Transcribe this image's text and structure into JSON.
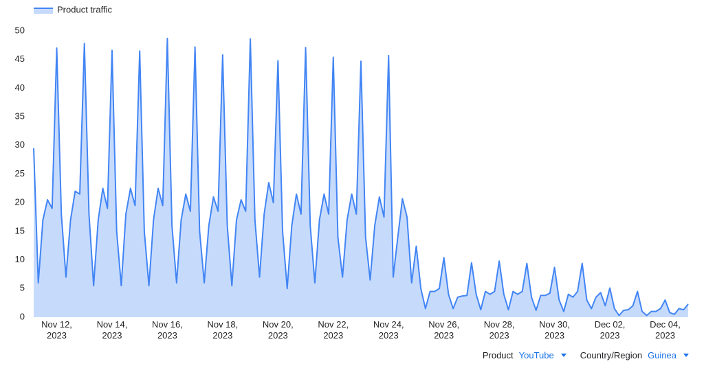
{
  "chart_data": {
    "type": "area",
    "legend_label": "Product traffic",
    "color": "#4285f4",
    "fill": "#c6dafc",
    "categories": [
      null,
      null,
      null,
      null,
      null,
      "Nov 12, 2023",
      null,
      null,
      null,
      null,
      null,
      null,
      null,
      null,
      null,
      null,
      null,
      "Nov 14, 2023",
      null,
      null,
      null,
      null,
      null,
      null,
      null,
      null,
      null,
      null,
      null,
      "Nov 16, 2023",
      null,
      null,
      null,
      null,
      null,
      null,
      null,
      null,
      null,
      null,
      null,
      "Nov 18, 2023",
      null,
      null,
      null,
      null,
      null,
      null,
      null,
      null,
      null,
      null,
      null,
      "Nov 20, 2023",
      null,
      null,
      null,
      null,
      null,
      null,
      null,
      null,
      null,
      null,
      null,
      "Nov 22, 2023",
      null,
      null,
      null,
      null,
      null,
      null,
      null,
      null,
      null,
      null,
      null,
      "Nov 24, 2023",
      null,
      null,
      null,
      null,
      null,
      null,
      null,
      null,
      null,
      null,
      null,
      "Nov 26, 2023",
      null,
      null,
      null,
      null,
      null,
      null,
      null,
      null,
      null,
      null,
      null,
      "Nov 28, 2023",
      null,
      null,
      null,
      null,
      null,
      null,
      null,
      null,
      null,
      null,
      null,
      "Nov 30, 2023",
      null,
      null,
      null,
      null,
      null,
      null,
      null,
      null,
      null,
      null,
      null,
      "Dec 02, 2023",
      null,
      null,
      null,
      null,
      null,
      null,
      null,
      null,
      null,
      null,
      null,
      "Dec 04, 2023",
      null,
      null,
      null,
      null,
      null
    ],
    "values": [
      29.5,
      6,
      17,
      20.5,
      19,
      47,
      18,
      7,
      17,
      22,
      21.5,
      47.8,
      18,
      5.5,
      17,
      22.5,
      19,
      46.6,
      15,
      5.5,
      18,
      22.5,
      19.5,
      46.5,
      15,
      5.5,
      17,
      22.5,
      19.5,
      48.7,
      16,
      6,
      17,
      21.5,
      18.5,
      47.2,
      15,
      6,
      16,
      21,
      18.5,
      45.8,
      16,
      5.5,
      17,
      20.5,
      18.5,
      48.6,
      17,
      7,
      18,
      23.5,
      20,
      44.8,
      15,
      5,
      16,
      21.5,
      18,
      47.1,
      16,
      6,
      17,
      21.5,
      18,
      45.4,
      14,
      7,
      17,
      21.5,
      18,
      44.7,
      14,
      6.5,
      16,
      21,
      17.5,
      45.7,
      7,
      14,
      20.7,
      17.5,
      6,
      12.4,
      5,
      1.5,
      4.5,
      4.5,
      5,
      10.4,
      4,
      1.5,
      3.5,
      3.7,
      3.8,
      9.5,
      4,
      1.3,
      4.5,
      4,
      4.5,
      9.8,
      4,
      1.3,
      4.5,
      4,
      4.5,
      9.4,
      3.5,
      1.2,
      3.8,
      3.8,
      4.2,
      8.7,
      3,
      1,
      4,
      3.5,
      4.5,
      9.4,
      3,
      1.5,
      3.5,
      4.3,
      2,
      5.1,
      1.5,
      0.3,
      1.2,
      1.3,
      2,
      4.5,
      1,
      0.3,
      1,
      1,
      1.5,
      3,
      0.8,
      0.5,
      1.5,
      1.3,
      2.3
    ],
    "ylim": [
      0,
      50
    ],
    "yticks": [
      0,
      5,
      10,
      15,
      20,
      25,
      30,
      35,
      40,
      45,
      50
    ]
  },
  "filters": [
    {
      "label": "Product",
      "value": "YouTube"
    },
    {
      "label": "Country/Region",
      "value": "Guinea"
    }
  ]
}
